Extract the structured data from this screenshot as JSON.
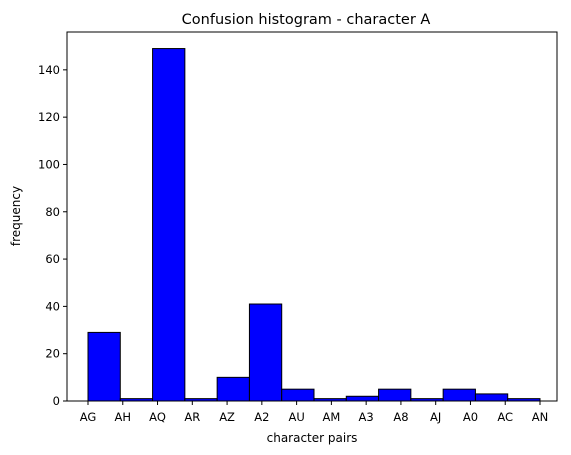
{
  "chart_data": {
    "type": "bar",
    "title": "Confusion histogram - character A",
    "xlabel": "character pairs",
    "ylabel": "frequency",
    "categories": [
      "AG",
      "AH",
      "AQ",
      "AR",
      "AZ",
      "A2",
      "AU",
      "AM",
      "A3",
      "A8",
      "AJ",
      "A0",
      "AC",
      "AN"
    ],
    "values": [
      29,
      1,
      149,
      1,
      10,
      41,
      5,
      1,
      2,
      5,
      1,
      5,
      3,
      1
    ],
    "ylim": [
      0,
      156
    ],
    "yticks": [
      0,
      20,
      40,
      60,
      80,
      100,
      120,
      140
    ],
    "grid": false,
    "bar_color": "#0000ff",
    "edge_color": "#000000"
  }
}
